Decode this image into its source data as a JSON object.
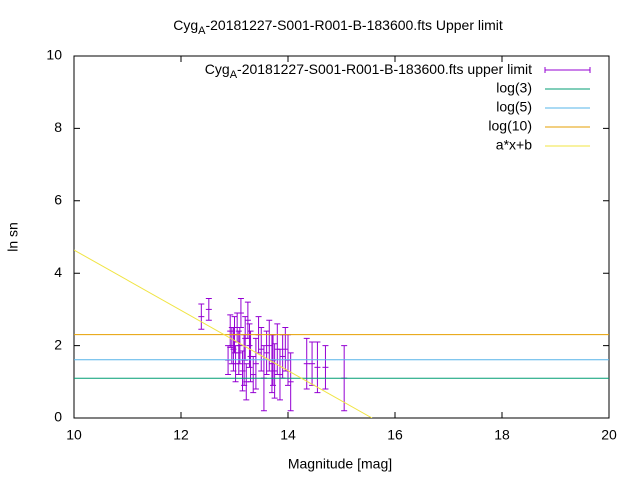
{
  "chart_data": {
    "type": "errorbar",
    "title": [
      "Cyg",
      "A",
      "-20181227-S001-R001-B-183600.fts Upper limit"
    ],
    "xlabel": "Magnitude [mag]",
    "ylabel": "ln sn",
    "xlim": [
      10,
      20
    ],
    "xticks": [
      10,
      12,
      14,
      16,
      18,
      20
    ],
    "ylim": [
      0,
      10
    ],
    "yticks": [
      0,
      2,
      4,
      6,
      8,
      10
    ],
    "legend": "top-right",
    "series": [
      {
        "type": "errorbar",
        "name": [
          "Cyg",
          "A",
          "-20181227-S001-R001-B-183600.fts upper limit"
        ],
        "color": "#9400d3",
        "x": [
          12.38,
          12.52,
          12.88,
          12.92,
          12.95,
          12.98,
          13.0,
          13.02,
          13.05,
          13.08,
          13.1,
          13.12,
          13.15,
          13.18,
          13.2,
          13.22,
          13.25,
          13.28,
          13.3,
          13.35,
          13.4,
          13.45,
          13.5,
          13.55,
          13.6,
          13.65,
          13.7,
          13.72,
          13.75,
          13.8,
          13.85,
          13.9,
          13.95,
          14.0,
          14.05,
          14.35,
          14.45,
          14.55,
          14.7,
          15.05
        ],
        "values": [
          2.8,
          3.0,
          1.6,
          2.4,
          2.0,
          1.9,
          2.3,
          1.5,
          2.5,
          1.8,
          2.0,
          2.9,
          1.3,
          1.6,
          2.2,
          1.0,
          2.7,
          2.0,
          1.7,
          1.2,
          1.5,
          2.3,
          1.9,
          1.1,
          1.8,
          2.0,
          1.5,
          1.6,
          1.3,
          1.9,
          1.2,
          1.7,
          1.9,
          1.6,
          1.0,
          1.5,
          1.5,
          1.4,
          1.4,
          1.1
        ],
        "errors": [
          0.35,
          0.3,
          0.4,
          0.45,
          0.5,
          0.6,
          0.5,
          0.5,
          0.4,
          0.6,
          0.5,
          0.4,
          0.55,
          0.7,
          0.6,
          0.5,
          0.5,
          0.6,
          0.7,
          0.5,
          0.7,
          0.5,
          0.6,
          0.9,
          0.6,
          0.7,
          0.8,
          0.7,
          0.75,
          0.7,
          0.7,
          0.6,
          0.6,
          0.7,
          0.8,
          0.7,
          0.6,
          0.7,
          0.6,
          0.9
        ]
      },
      {
        "type": "hline",
        "name": "log(3)",
        "color": "#009e73",
        "value": 1.0986
      },
      {
        "type": "hline",
        "name": "log(5)",
        "color": "#56b4e9",
        "value": 1.6094
      },
      {
        "type": "hline",
        "name": "log(10)",
        "color": "#e69f00",
        "value": 2.3026
      },
      {
        "type": "line",
        "name": "a*x+b",
        "color": "#f0e442",
        "x": [
          10,
          15.57
        ],
        "values": [
          4.64,
          0
        ]
      }
    ]
  }
}
